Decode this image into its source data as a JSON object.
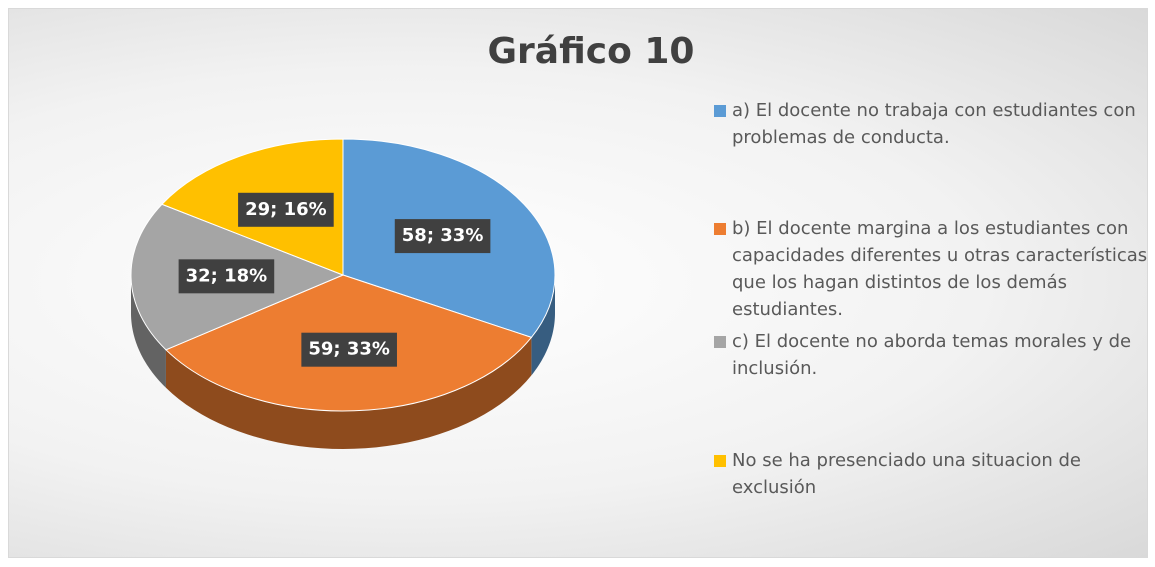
{
  "chart_data": {
    "type": "pie",
    "title": "Gráfico 10",
    "categories": [
      "a)   El docente no trabaja con estudiantes con problemas de conducta.",
      "b)   El docente margina a los estudiantes con capacidades diferentes u otras características que los hagan distintos de los demás estudiantes.",
      "c)   El docente no aborda temas morales y de inclusión.",
      "No se ha presenciado una situacion de exclusión"
    ],
    "values": [
      58,
      59,
      32,
      29
    ],
    "value_labels": [
      "58; 33%",
      "59; 33%",
      "32; 18%",
      "29; 16%"
    ],
    "colors": [
      "#5b9bd5",
      "#ed7d31",
      "#a5a5a5",
      "#ffc000"
    ],
    "legend": "right"
  }
}
